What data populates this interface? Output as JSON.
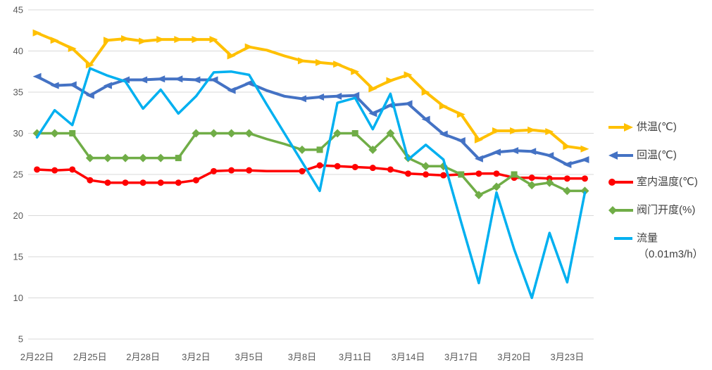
{
  "chart_data": {
    "type": "line",
    "title": "",
    "grid": "horizontal",
    "legend_position": "right",
    "background": "#FFFFFF",
    "gridline_color": "#D9D9D9",
    "axis_label_color": "#595959",
    "categories": [
      "2月22日",
      "2月23日",
      "2月24日",
      "2月25日",
      "2月26日",
      "2月27日",
      "2月28日",
      "2月29日",
      "3月1日",
      "3月2日",
      "3月3日",
      "3月4日",
      "3月5日",
      "3月6日",
      "3月7日",
      "3月8日",
      "3月9日",
      "3月10日",
      "3月11日",
      "3月12日",
      "3月13日",
      "3月14日",
      "3月15日",
      "3月16日",
      "3月17日",
      "3月18日",
      "3月19日",
      "3月20日",
      "3月21日",
      "3月22日",
      "3月23日",
      "3月24日"
    ],
    "x_tick_labels": [
      "2月22日",
      "2月25日",
      "2月28日",
      "3月2日",
      "3月5日",
      "3月8日",
      "3月11日",
      "3月14日",
      "3月17日",
      "3月20日",
      "3月23日"
    ],
    "x_tick_indices": [
      0,
      3,
      6,
      9,
      12,
      15,
      18,
      21,
      24,
      27,
      30
    ],
    "y_axis": {
      "min": 5,
      "max": 45,
      "step": 5,
      "ticks": [
        5,
        10,
        15,
        20,
        25,
        30,
        35,
        40,
        45
      ]
    },
    "marker_gap_indices": [
      13,
      14
    ],
    "series": [
      {
        "name": "供温(℃)",
        "color": "#FFC000",
        "marker": "arrow-right",
        "stroke_width": 4,
        "values": [
          42.2,
          41.3,
          40.3,
          38.3,
          41.3,
          41.5,
          41.2,
          41.4,
          41.4,
          41.4,
          41.4,
          39.4,
          40.5,
          40.1,
          39.4,
          38.8,
          38.6,
          38.4,
          37.5,
          35.4,
          36.4,
          37.1,
          35.0,
          33.3,
          32.3,
          29.2,
          30.3,
          30.3,
          30.4,
          30.2,
          28.4,
          28.1
        ]
      },
      {
        "name": "回温(℃)",
        "color": "#4472C4",
        "marker": "arrow-left",
        "stroke_width": 4,
        "values": [
          36.9,
          35.8,
          35.9,
          34.6,
          35.8,
          36.5,
          36.5,
          36.6,
          36.6,
          36.5,
          36.5,
          35.2,
          36.1,
          35.2,
          34.5,
          34.2,
          34.4,
          34.5,
          34.6,
          32.4,
          33.4,
          33.6,
          31.7,
          29.9,
          29.1,
          26.9,
          27.7,
          27.9,
          27.8,
          27.3,
          26.2,
          26.8
        ]
      },
      {
        "name": "室内温度(℃)",
        "color": "#FF0000",
        "marker": "circle",
        "stroke_width": 3.5,
        "values": [
          25.6,
          25.5,
          25.6,
          24.3,
          24.0,
          24.0,
          24.0,
          24.0,
          24.0,
          24.3,
          25.4,
          25.5,
          25.5,
          25.4,
          25.4,
          25.4,
          26.1,
          26.0,
          25.9,
          25.8,
          25.6,
          25.1,
          25.0,
          24.9,
          25.0,
          25.1,
          25.1,
          24.6,
          24.6,
          24.5,
          24.5,
          24.5
        ]
      },
      {
        "name": "阀门开度(%)",
        "color": "#70AD47",
        "marker": "diamond",
        "stroke_width": 3.5,
        "square_indices": [
          2,
          8,
          16,
          18,
          24,
          27
        ],
        "values": [
          30,
          30,
          30,
          27,
          27,
          27,
          27,
          27,
          27,
          30,
          30,
          30,
          30,
          29.3,
          28.7,
          28,
          28,
          30,
          30,
          28,
          30,
          27,
          26,
          26,
          25,
          22.5,
          23.5,
          25,
          23.7,
          24,
          23,
          23
        ]
      },
      {
        "name": "流量",
        "sublabel": "（0.01m3/h）",
        "color": "#00B0F0",
        "marker": "none",
        "stroke_width": 3.5,
        "values": [
          29.5,
          32.8,
          31.0,
          37.9,
          37.0,
          36.3,
          33.0,
          35.3,
          32.4,
          34.5,
          37.4,
          37.5,
          37.1,
          33.5,
          30.0,
          26.5,
          23.0,
          33.7,
          34.3,
          30.5,
          34.8,
          26.8,
          28.6,
          26.8,
          19.2,
          11.8,
          22.8,
          15.9,
          10.0,
          17.9,
          11.9,
          22.8
        ]
      }
    ]
  }
}
